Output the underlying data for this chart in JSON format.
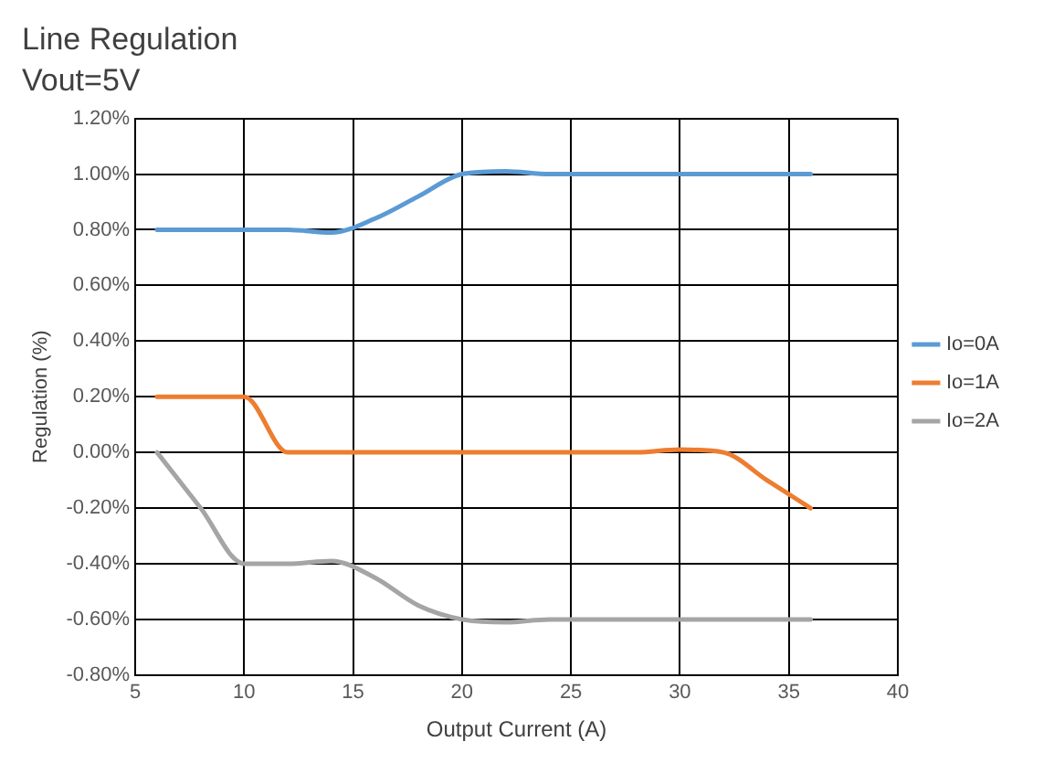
{
  "chart_data": {
    "type": "line",
    "title": "Line Regulation",
    "subtitle": "Vout=5V",
    "xlabel": "Output Current (A)",
    "ylabel": "Regulation (%)",
    "xlim": [
      5,
      40
    ],
    "xticks": [
      5,
      10,
      15,
      20,
      25,
      30,
      35,
      40
    ],
    "ylim": [
      -0.8,
      1.2
    ],
    "yticks": [
      {
        "value": -0.8,
        "label": "-0.80%"
      },
      {
        "value": -0.6,
        "label": "-0.60%"
      },
      {
        "value": -0.4,
        "label": "-0.40%"
      },
      {
        "value": -0.2,
        "label": "-0.20%"
      },
      {
        "value": 0,
        "label": "0.00%"
      },
      {
        "value": 0.2,
        "label": "0.20%"
      },
      {
        "value": 0.4,
        "label": "0.40%"
      },
      {
        "value": 0.6,
        "label": "0.60%"
      },
      {
        "value": 0.8,
        "label": "0.80%"
      },
      {
        "value": 1.0,
        "label": "1.00%"
      },
      {
        "value": 1.2,
        "label": "1.20%"
      }
    ],
    "grid": true,
    "legend": "right",
    "marker": "none",
    "line_style": "solid",
    "series": [
      {
        "name": "Io=0A",
        "color": "#5b9bd5",
        "x": [
          6,
          8,
          10,
          12,
          14,
          16,
          18,
          20,
          22,
          24,
          26,
          28,
          30,
          32,
          34,
          36
        ],
        "values": [
          0.8,
          0.8,
          0.8,
          0.8,
          0.79,
          0.84,
          0.92,
          1.0,
          1.01,
          1.0,
          1.0,
          1.0,
          1.0,
          1.0,
          1.0,
          1.0
        ]
      },
      {
        "name": "Io=1A",
        "color": "#ed7d31",
        "x": [
          6,
          8,
          10,
          12,
          14,
          16,
          18,
          20,
          22,
          24,
          26,
          28,
          30,
          32,
          34,
          36
        ],
        "values": [
          0.2,
          0.2,
          0.2,
          0.0,
          0.0,
          0.0,
          0.0,
          0.0,
          0.0,
          0.0,
          0.0,
          0.0,
          0.01,
          0.0,
          -0.1,
          -0.2
        ]
      },
      {
        "name": "Io=2A",
        "color": "#a5a5a5",
        "x": [
          6,
          8,
          10,
          12,
          14,
          16,
          18,
          20,
          22,
          24,
          26,
          28,
          30,
          32,
          34,
          36
        ],
        "values": [
          0.0,
          -0.2,
          -0.4,
          -0.4,
          -0.39,
          -0.45,
          -0.55,
          -0.6,
          -0.61,
          -0.6,
          -0.6,
          -0.6,
          -0.6,
          -0.6,
          -0.6,
          -0.6
        ]
      }
    ]
  }
}
